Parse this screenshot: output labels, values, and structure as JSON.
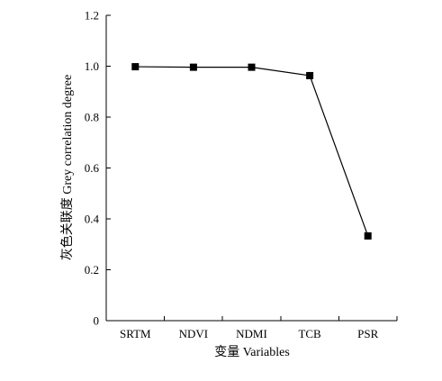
{
  "chart_data": {
    "type": "line",
    "categories": [
      "SRTM",
      "NDVI",
      "NDMI",
      "TCB",
      "PSR"
    ],
    "series": [
      {
        "values": [
          0.998,
          0.996,
          0.996,
          0.963,
          0.333
        ],
        "marker": "square",
        "color": "#000000"
      }
    ],
    "xlabel": "变量 Variables",
    "ylabel": "灰色关联度 Grey correlation degree",
    "ylim": [
      0,
      1.2
    ],
    "yticks": [
      0,
      0.2,
      0.4,
      0.6,
      0.8,
      1.0,
      1.2
    ],
    "ytick_labels": [
      "0",
      "0.2",
      "0.4",
      "0.6",
      "0.8",
      "1.0",
      "1.2"
    ],
    "grid": false,
    "legend": "none"
  }
}
